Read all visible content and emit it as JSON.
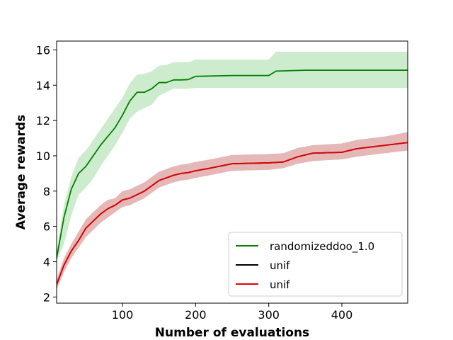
{
  "chart_data": {
    "type": "line",
    "title": "",
    "xlabel": "Number of evaluations",
    "ylabel": "Average rewards",
    "xlim": [
      10,
      490
    ],
    "ylim": [
      1.65,
      16.5
    ],
    "xticks": [
      100,
      200,
      300,
      400
    ],
    "yticks": [
      2,
      4,
      6,
      8,
      10,
      12,
      14,
      16
    ],
    "grid": false,
    "legend_position": "lower-right",
    "series": [
      {
        "name": "randomizeddoo_1.0",
        "color": "#008000",
        "band_color": "#90d490",
        "x": [
          10,
          20,
          30,
          40,
          50,
          60,
          70,
          80,
          90,
          100,
          110,
          120,
          130,
          140,
          150,
          160,
          170,
          180,
          190,
          200,
          250,
          300,
          310,
          350,
          400,
          490
        ],
        "y": [
          4.2,
          6.5,
          8.1,
          9.0,
          9.4,
          10.0,
          10.6,
          11.1,
          11.6,
          12.3,
          13.1,
          13.6,
          13.6,
          13.8,
          14.15,
          14.15,
          14.3,
          14.3,
          14.32,
          14.5,
          14.55,
          14.55,
          14.8,
          14.85,
          14.85,
          14.85
        ],
        "lower": [
          4.0,
          5.0,
          6.6,
          7.8,
          8.2,
          8.7,
          9.4,
          10.0,
          10.6,
          11.3,
          12.1,
          12.5,
          12.7,
          12.9,
          13.4,
          13.6,
          13.8,
          13.8,
          13.8,
          13.85,
          13.85,
          13.85,
          13.85,
          13.85,
          13.85,
          13.85
        ],
        "upper": [
          4.6,
          7.2,
          8.8,
          9.9,
          10.3,
          10.9,
          11.5,
          12.1,
          12.7,
          13.3,
          14.1,
          14.6,
          14.65,
          14.8,
          15.1,
          15.15,
          15.3,
          15.3,
          15.3,
          15.45,
          15.45,
          15.45,
          15.9,
          15.9,
          15.9,
          15.9
        ]
      },
      {
        "name": "unif",
        "color": "#000000",
        "x": [
          10,
          20,
          30,
          40,
          50,
          60,
          70,
          80,
          90,
          100,
          110,
          120,
          130,
          140,
          150,
          160,
          170,
          180,
          190,
          200,
          220,
          250,
          300,
          320,
          340,
          360,
          400,
          420,
          460,
          490
        ],
        "y": [
          2.7,
          3.8,
          4.6,
          5.2,
          5.9,
          6.3,
          6.7,
          7.0,
          7.2,
          7.5,
          7.6,
          7.8,
          8.0,
          8.3,
          8.6,
          8.75,
          8.9,
          9.0,
          9.05,
          9.15,
          9.3,
          9.55,
          9.6,
          9.65,
          9.95,
          10.15,
          10.2,
          10.4,
          10.6,
          10.75
        ]
      },
      {
        "name": "unif",
        "color": "#e00000",
        "band_color": "#c86060",
        "x": [
          10,
          20,
          30,
          40,
          50,
          60,
          70,
          80,
          90,
          100,
          110,
          120,
          130,
          140,
          150,
          160,
          170,
          180,
          190,
          200,
          220,
          250,
          300,
          320,
          340,
          360,
          400,
          420,
          460,
          490
        ],
        "y": [
          2.7,
          3.8,
          4.6,
          5.2,
          5.9,
          6.3,
          6.7,
          7.0,
          7.2,
          7.5,
          7.6,
          7.8,
          8.0,
          8.3,
          8.6,
          8.75,
          8.9,
          9.0,
          9.05,
          9.15,
          9.3,
          9.55,
          9.6,
          9.65,
          9.95,
          10.15,
          10.2,
          10.4,
          10.6,
          10.75
        ],
        "lower": [
          2.4,
          3.4,
          4.2,
          4.8,
          5.4,
          5.8,
          6.2,
          6.5,
          6.8,
          7.1,
          7.2,
          7.4,
          7.6,
          7.9,
          8.2,
          8.35,
          8.5,
          8.6,
          8.65,
          8.75,
          8.9,
          9.15,
          9.2,
          9.3,
          9.55,
          9.7,
          9.8,
          9.95,
          10.15,
          10.3
        ],
        "upper": [
          3.0,
          4.2,
          5.0,
          5.7,
          6.4,
          6.8,
          7.2,
          7.5,
          7.6,
          8.0,
          8.1,
          8.3,
          8.5,
          8.8,
          9.1,
          9.25,
          9.4,
          9.5,
          9.55,
          9.65,
          9.8,
          10.05,
          10.1,
          10.15,
          10.45,
          10.6,
          10.7,
          10.9,
          11.1,
          11.35
        ]
      }
    ]
  }
}
